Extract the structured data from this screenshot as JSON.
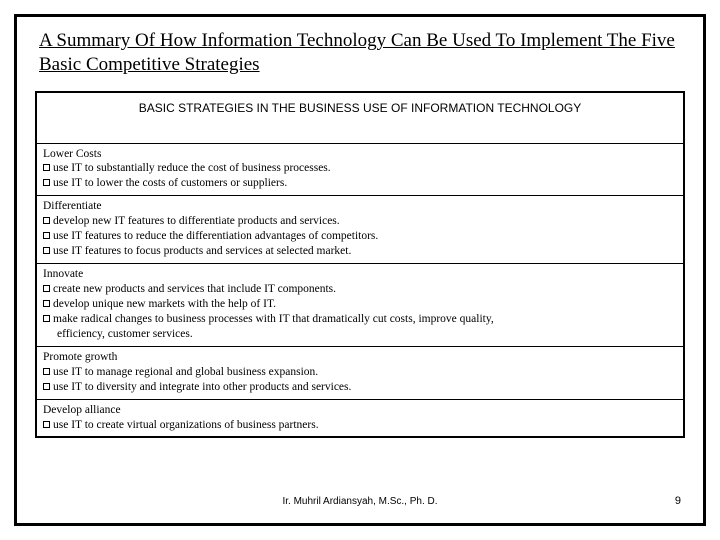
{
  "title": "A Summary Of How Information Technology Can Be Used To Implement The Five Basic Competitive Strategies",
  "table_header": "BASIC STRATEGIES IN THE BUSINESS USE OF INFORMATION TECHNOLOGY",
  "sections": {
    "s0": {
      "title": "Lower Costs",
      "b0": "use IT to substantially reduce the cost of business processes.",
      "b1": "use IT to lower the costs of customers or suppliers."
    },
    "s1": {
      "title": "Differentiate",
      "b0": "develop new IT features to differentiate products and services.",
      "b1": "use IT features to reduce the differentiation advantages of competitors.",
      "b2": "use IT features to focus products and services at selected market."
    },
    "s2": {
      "title": "Innovate",
      "b0": "create new products and services that include IT components.",
      "b1": "develop unique new markets with the help of IT.",
      "b2": "make radical changes to business processes with IT that dramatically cut costs, improve quality,",
      "b2c": "efficiency, customer services."
    },
    "s3": {
      "title": "Promote growth",
      "b0": "use IT to manage regional and global business expansion.",
      "b1": "use IT to diversity and integrate into other products and services."
    },
    "s4": {
      "title": "Develop alliance",
      "b0": "use IT to create virtual organizations of business partners."
    }
  },
  "footer_author": "Ir. Muhril Ardiansyah, M.Sc., Ph. D.",
  "page_number": "9",
  "colors": {
    "border": "#000000",
    "bg": "#ffffff",
    "text": "#000000"
  }
}
